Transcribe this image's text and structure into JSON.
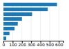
{
  "chart_data": {
    "type": "bar",
    "orientation": "horizontal",
    "categories": [
      null,
      null,
      null,
      null,
      null,
      null,
      null,
      null
    ],
    "values": [
      580,
      480,
      310,
      200,
      155,
      120,
      65,
      30
    ],
    "color": "#1f77b4",
    "xlim": [
      0,
      650
    ],
    "xticks": [
      0,
      100,
      200,
      300,
      400,
      500,
      600
    ],
    "grid": true,
    "tick_labels": "x"
  }
}
